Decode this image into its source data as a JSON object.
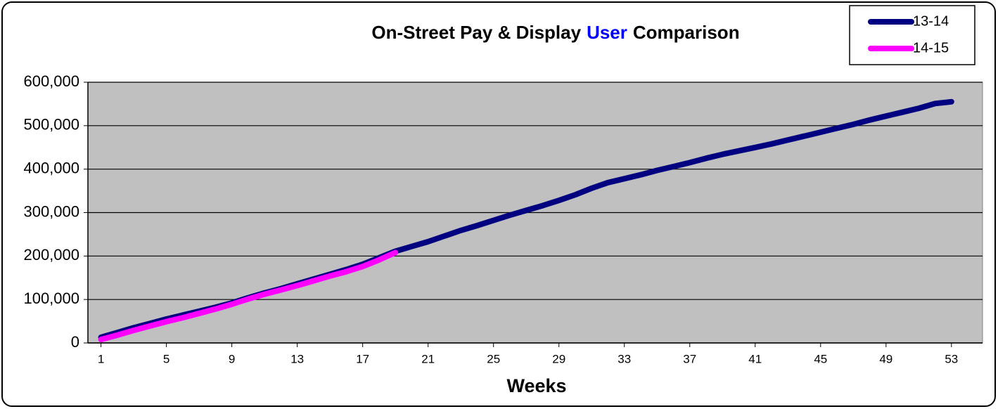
{
  "chart_data": {
    "type": "line",
    "title_parts": [
      {
        "text": "On-Street Pay & Display",
        "color": "#000000"
      },
      {
        "text": "User",
        "color": "#0000ff"
      },
      {
        "text": "Comparison",
        "color": "#000000"
      }
    ],
    "x_label": "Weeks",
    "x": [
      1,
      2,
      3,
      4,
      5,
      6,
      7,
      8,
      9,
      10,
      11,
      12,
      13,
      14,
      15,
      16,
      17,
      18,
      19,
      20,
      21,
      22,
      23,
      24,
      25,
      26,
      27,
      28,
      29,
      30,
      31,
      32,
      33,
      34,
      35,
      36,
      37,
      38,
      39,
      40,
      41,
      42,
      43,
      44,
      45,
      46,
      47,
      48,
      49,
      50,
      51,
      52,
      53
    ],
    "series": [
      {
        "name": "13-14",
        "color": "#000080",
        "values": [
          13000,
          24000,
          35000,
          45000,
          55000,
          64000,
          73000,
          82000,
          92000,
          104000,
          115000,
          125000,
          136000,
          147000,
          158000,
          169000,
          181000,
          196000,
          211000,
          222000,
          233000,
          246000,
          259000,
          270000,
          282000,
          294000,
          305000,
          316000,
          328000,
          341000,
          356000,
          369000,
          378000,
          387000,
          397000,
          406000,
          415000,
          425000,
          434000,
          442000,
          450000,
          458000,
          467000,
          476000,
          485000,
          494000,
          503000,
          513000,
          522000,
          531000,
          540000,
          551000,
          555000
        ]
      },
      {
        "name": "14-15",
        "color": "#ff00ff",
        "values": [
          8000,
          18000,
          29000,
          39000,
          49000,
          58000,
          68000,
          78000,
          89000,
          101000,
          112000,
          122000,
          132000,
          143000,
          154000,
          164000,
          176000,
          191000,
          208000,
          null,
          null,
          null,
          null,
          null,
          null,
          null,
          null,
          null,
          null,
          null,
          null,
          null,
          null,
          null,
          null,
          null,
          null,
          null,
          null,
          null,
          null,
          null,
          null,
          null,
          null,
          null,
          null,
          null,
          null,
          null,
          null,
          null,
          null
        ]
      }
    ],
    "xlim": [
      0.2,
      54.9
    ],
    "xticks": [
      1,
      5,
      9,
      13,
      17,
      21,
      25,
      29,
      33,
      37,
      41,
      45,
      49,
      53
    ],
    "ylim": [
      0,
      600000
    ],
    "yticks": [
      0,
      {
        "value": 100000,
        "label": "100,000"
      },
      {
        "value": 200000,
        "label": "200,000"
      },
      {
        "value": 300000,
        "label": "300,000"
      },
      {
        "value": 400000,
        "label": "400,000"
      },
      {
        "value": 500000,
        "label": "500,000"
      },
      {
        "value": 600000,
        "label": "600,000"
      }
    ],
    "grid": true,
    "legend_position": "top-right",
    "plot_background": "#c0c0c0"
  }
}
